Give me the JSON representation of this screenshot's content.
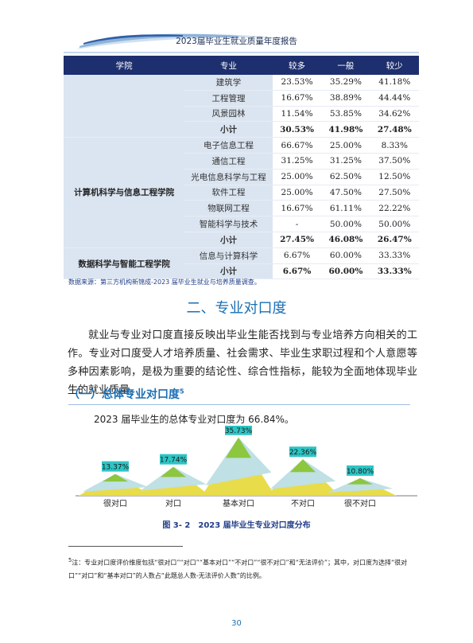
{
  "header": {
    "title": "2023届毕业生就业质量年度报告"
  },
  "table": {
    "headers": [
      "学院",
      "专业",
      "较多",
      "一般",
      "较少"
    ],
    "groups": [
      {
        "college": "",
        "rows": [
          {
            "major": "建筑学",
            "a": "23.53%",
            "b": "35.29%",
            "c": "41.18%"
          },
          {
            "major": "工程管理",
            "a": "16.67%",
            "b": "38.89%",
            "c": "44.44%"
          },
          {
            "major": "风景园林",
            "a": "11.54%",
            "b": "53.85%",
            "c": "34.62%"
          },
          {
            "major": "小计",
            "a": "30.53%",
            "b": "41.98%",
            "c": "27.48%",
            "subtotal": true
          }
        ]
      },
      {
        "college": "计算机科学与信息工程学院",
        "rows": [
          {
            "major": "电子信息工程",
            "a": "66.67%",
            "b": "25.00%",
            "c": "8.33%"
          },
          {
            "major": "通信工程",
            "a": "31.25%",
            "b": "31.25%",
            "c": "37.50%"
          },
          {
            "major": "光电信息科学与工程",
            "a": "25.00%",
            "b": "62.50%",
            "c": "12.50%"
          },
          {
            "major": "软件工程",
            "a": "25.00%",
            "b": "47.50%",
            "c": "27.50%"
          },
          {
            "major": "物联网工程",
            "a": "16.67%",
            "b": "61.11%",
            "c": "22.22%"
          },
          {
            "major": "智能科学与技术",
            "a": "-",
            "b": "50.00%",
            "c": "50.00%"
          },
          {
            "major": "小计",
            "a": "27.45%",
            "b": "46.08%",
            "c": "26.47%",
            "subtotal": true
          }
        ]
      },
      {
        "college": "数据科学与智能工程学院",
        "rows": [
          {
            "major": "信息与计算科学",
            "a": "6.67%",
            "b": "60.00%",
            "c": "33.33%"
          },
          {
            "major": "小计",
            "a": "6.67%",
            "b": "60.00%",
            "c": "33.33%",
            "subtotal": true
          }
        ]
      }
    ]
  },
  "source": "数据来源：第三方机构新锦成-2023 届毕业生就业与培养质量调查。",
  "section": {
    "title": "二、专业对口度"
  },
  "paragraph": "就业与专业对口度直接反映出毕业生能否找到与专业培养方向相关的工作。专业对口度受人才培养质量、社会需求、毕业生求职过程和个人意愿等多种因素影响，是极为重要的结论性、综合性指标，能较为全面地体现毕业生的就业质量。",
  "subsection": {
    "title": "（一）总体专业对口度",
    "sup": "5"
  },
  "chart_intro": "2023 届毕业生的总体专业对口度为 66.84%。",
  "chart_data": {
    "type": "bar",
    "categories": [
      "很对口",
      "对口",
      "基本对口",
      "不对口",
      "很不对口"
    ],
    "values": [
      13.37,
      17.74,
      35.73,
      22.36,
      10.8
    ],
    "labels": [
      "13.37%",
      "17.74%",
      "35.73%",
      "22.36%",
      "10.80%"
    ],
    "colors": {
      "top": "#8dc63f",
      "middle": "#bfe0e4",
      "bottom": "#e8dc4a",
      "label_bg": "#2ec4c4"
    }
  },
  "figure_caption": "图 3- 2　2023 届毕业生专业对口度分布",
  "footnote": "注：专业对口度评价维度包括“很对口”“对口”“基本对口”“不对口”“很不对口”和“无法评价”；其中，对口度为选择“很对口”“对口”和“基本对口”的人数占“此题总人数-无法评价人数”的比例。",
  "footnote_mark": "5",
  "page_number": "30"
}
